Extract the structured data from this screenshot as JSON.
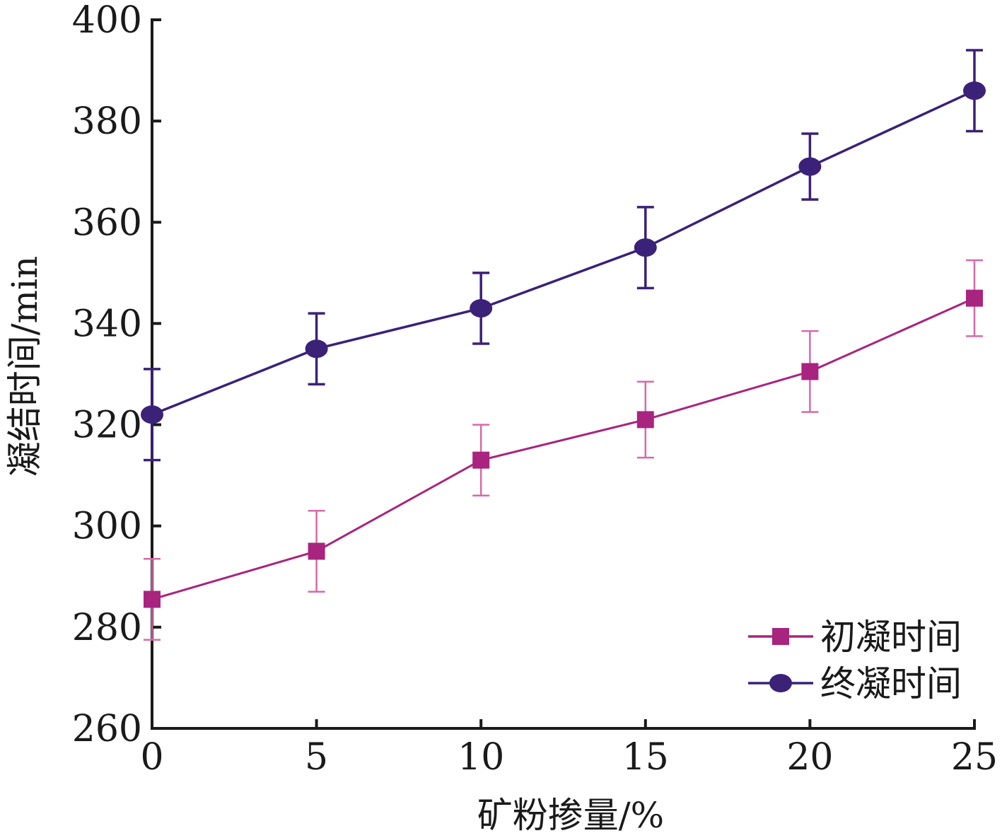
{
  "chart_data": {
    "type": "line",
    "xlabel": "矿粉掺量/%",
    "ylabel": "凝结时间/min",
    "x": [
      0,
      5,
      10,
      15,
      20,
      25
    ],
    "xlim": [
      0,
      25
    ],
    "ylim": [
      260,
      400
    ],
    "x_ticks": [
      0,
      5,
      10,
      15,
      20,
      25
    ],
    "y_ticks": [
      260,
      280,
      300,
      320,
      340,
      360,
      380,
      400
    ],
    "grid": false,
    "legend_position": "bottom-right",
    "series": [
      {
        "name": "初凝时间",
        "marker": "square",
        "color": "#a8247f",
        "error_color": "#d66aa8",
        "values": [
          285.5,
          295,
          313,
          321,
          330.5,
          345
        ],
        "error": [
          8,
          8,
          7,
          7.5,
          8,
          7.5
        ]
      },
      {
        "name": "终凝时间",
        "marker": "circle",
        "color": "#3b2178",
        "error_color": "#3b2178",
        "values": [
          322,
          335,
          343,
          355,
          371,
          386
        ],
        "error": [
          9,
          7,
          7,
          8,
          6.5,
          8
        ]
      }
    ]
  }
}
